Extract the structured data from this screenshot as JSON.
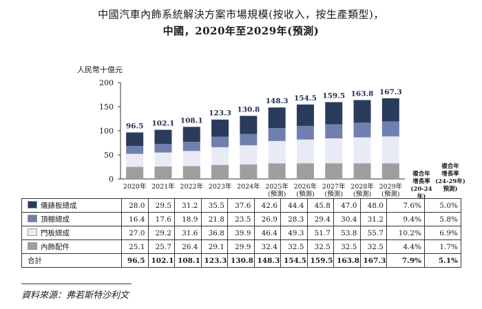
{
  "title_line1": "中國汽車內飾系統解決方案市場規模(按收入，按生產類型)，",
  "title_line2": "中國，2020年至2029年(預測)",
  "colors": {
    "dashboard": "#2b3b5c",
    "headliner": "#6f80b0",
    "door_panel": "#e8ebf5",
    "interior_parts": "#9e9e9e"
  },
  "chart_data": {
    "type": "bar",
    "stacked": true,
    "title": "中國汽車內飾系統解決方案市場規模(按收入，按生產類型)，中國，2020年至2029年(預測)",
    "ylabel": "人民幣十億元",
    "ylim": [
      0,
      200
    ],
    "yticks": [
      0,
      50,
      100,
      150,
      200
    ],
    "grid": false,
    "categories": [
      "2020年",
      "2021年",
      "2022年",
      "2023年",
      "2024年",
      "2025年\n(預測)",
      "2026年\n(預測)",
      "2027年\n(預測)",
      "2028年\n(預測)",
      "2029年\n(預測)"
    ],
    "series": [
      {
        "name": "內飾配件",
        "key": "interior_parts",
        "values": [
          25.1,
          25.7,
          26.4,
          29.1,
          29.9,
          32.4,
          32.5,
          32.5,
          32.5,
          32.5
        ],
        "cagr_20_24": "4.4%",
        "cagr_24_29": "1.7%"
      },
      {
        "name": "門板總成",
        "key": "door_panel",
        "values": [
          27.0,
          29.2,
          31.6,
          36.8,
          39.9,
          46.4,
          49.3,
          51.7,
          53.8,
          55.7
        ],
        "cagr_20_24": "10.2%",
        "cagr_24_29": "6.9%"
      },
      {
        "name": "頂棚總成",
        "key": "headliner",
        "values": [
          16.4,
          17.6,
          18.9,
          21.8,
          23.5,
          26.9,
          28.3,
          29.4,
          30.4,
          31.2
        ],
        "cagr_20_24": "9.4%",
        "cagr_24_29": "5.8%"
      },
      {
        "name": "儀錶板總成",
        "key": "dashboard",
        "values": [
          28.0,
          29.5,
          31.2,
          35.5,
          37.6,
          42.6,
          44.4,
          45.8,
          47.0,
          48.0
        ],
        "cagr_20_24": "7.6%",
        "cagr_24_29": "5.0%"
      }
    ],
    "totals": [
      96.5,
      102.1,
      108.1,
      123.3,
      130.8,
      148.3,
      154.5,
      159.5,
      163.8,
      167.3
    ],
    "totals_labels": [
      "96.5",
      "102.1",
      "108.1",
      "123.3",
      "130.8",
      "148.3",
      "154.5",
      "159.5",
      "163.8",
      "167.3"
    ],
    "total_label": "合計",
    "total_cagr_20_24": "7.9%",
    "total_cagr_24_29": "5.1%",
    "cagr_header_1": [
      "複合年",
      "增長率",
      "(20-24年)"
    ],
    "cagr_header_2": [
      "複合年",
      "增長率",
      "(24-29年)",
      "預測)"
    ]
  },
  "table": {
    "rows": [
      {
        "label": "儀錶板總成",
        "key": "dashboard",
        "values": [
          "28.0",
          "29.5",
          "31.2",
          "35.5",
          "37.6",
          "42.6",
          "44.4",
          "45.8",
          "47.0",
          "48.0"
        ],
        "cagr1": "7.6%",
        "cagr2": "5.0%"
      },
      {
        "label": "頂棚總成",
        "key": "headliner",
        "values": [
          "16.4",
          "17.6",
          "18.9",
          "21.8",
          "23.5",
          "26.9",
          "28.3",
          "29.4",
          "30.4",
          "31.2"
        ],
        "cagr1": "9.4%",
        "cagr2": "5.8%"
      },
      {
        "label": "門板總成",
        "key": "door_panel",
        "values": [
          "27.0",
          "29.2",
          "31.6",
          "36.8",
          "39.9",
          "46.4",
          "49.3",
          "51.7",
          "53.8",
          "55.7"
        ],
        "cagr1": "10.2%",
        "cagr2": "6.9%"
      },
      {
        "label": "內飾配件",
        "key": "interior_parts",
        "values": [
          "25.1",
          "25.7",
          "26.4",
          "29.1",
          "29.9",
          "32.4",
          "32.5",
          "32.5",
          "32.5",
          "32.5"
        ],
        "cagr1": "4.4%",
        "cagr2": "1.7%"
      }
    ],
    "total": {
      "label": "合計",
      "values": [
        "96.5",
        "102.1",
        "108.1",
        "123.3",
        "130.8",
        "148.3",
        "154.5",
        "159.5",
        "163.8",
        "167.3"
      ],
      "cagr1": "7.9%",
      "cagr2": "5.1%"
    }
  },
  "source": "資料來源：弗若斯特沙利文"
}
